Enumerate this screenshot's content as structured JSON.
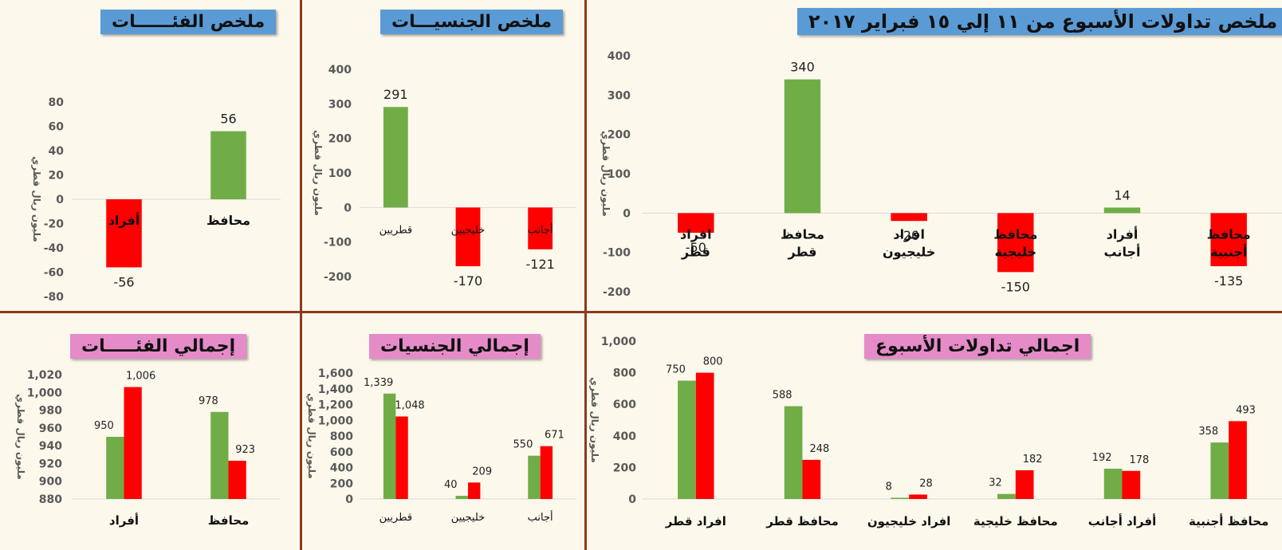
{
  "colors": {
    "green": "#70ad47",
    "red": "#ff0000",
    "blue_banner": "#5b9bd5",
    "pink_banner": "#e58bc8",
    "divider": "#8b3a1e"
  },
  "chart_data": [
    {
      "id": "weekly_net",
      "type": "bar",
      "title": "ملخص تداولات الأسبوع من ١١ إلي ١٥ فبراير ٢٠١٧",
      "ylabel": "مليون ريال قطري",
      "ylim": [
        -200,
        400
      ],
      "yticks": [
        -200,
        -100,
        0,
        100,
        200,
        300,
        400
      ],
      "categories": [
        [
          "افراد",
          "قطر"
        ],
        [
          "محافظ",
          "قطر"
        ],
        [
          "افراد",
          "خليجيون"
        ],
        [
          "محافظ",
          "خليجية"
        ],
        [
          "أفراد",
          "أجانب"
        ],
        [
          "محافظ",
          "أجنبية"
        ]
      ],
      "values": [
        -50,
        340,
        -20,
        -150,
        14,
        -135
      ],
      "labels": [
        "-50",
        "340",
        "-20",
        "-150",
        "14",
        "-135"
      ]
    },
    {
      "id": "nationality_net",
      "type": "bar",
      "title": "ملخص الجنسيـــات",
      "ylabel": "مليون ريال قطري",
      "ylim": [
        -200,
        400
      ],
      "yticks": [
        -200,
        -100,
        0,
        100,
        200,
        300,
        400
      ],
      "categories": [
        "قطريين",
        "خليجيين",
        "أجانب"
      ],
      "values": [
        291,
        -170,
        -121
      ],
      "labels": [
        "291",
        "-170",
        "-121"
      ]
    },
    {
      "id": "category_net",
      "type": "bar",
      "title": "ملخص الفئــــــات",
      "ylabel": "مليون ريال قطري",
      "ylim": [
        -80,
        80
      ],
      "yticks": [
        -80,
        -60,
        -40,
        -20,
        0,
        20,
        40,
        60,
        80
      ],
      "categories": [
        "أفراد",
        "محافظ"
      ],
      "values": [
        -56,
        56
      ],
      "labels": [
        "-56",
        "56"
      ]
    },
    {
      "id": "weekly_total",
      "type": "bar",
      "title": "اجمالي تداولات الأسبوع",
      "ylabel": "مليون ريال قطري",
      "ylim": [
        0,
        1000
      ],
      "yticks": [
        0,
        200,
        400,
        600,
        800,
        1000
      ],
      "ytick_labels": [
        "0",
        "200",
        "400",
        "600",
        "800",
        "1,000"
      ],
      "categories": [
        "افراد قطر",
        "محافظ قطر",
        "افراد خليجيون",
        "محافظ خليجية",
        "أفراد أجانب",
        "محافظ أجنبية"
      ],
      "series": [
        {
          "values": [
            750,
            588,
            8,
            32,
            192,
            358
          ],
          "labels": [
            "750",
            "588",
            "8",
            "32",
            "192",
            "358"
          ]
        },
        {
          "values": [
            800,
            248,
            28,
            182,
            178,
            493
          ],
          "labels": [
            "800",
            "248",
            "28",
            "182",
            "178",
            "493"
          ]
        }
      ]
    },
    {
      "id": "nationality_total",
      "type": "bar",
      "title": "إجمالي الجنسيات",
      "ylabel": "مليون ريال قطري",
      "ylim": [
        0,
        1600
      ],
      "yticks": [
        0,
        200,
        400,
        600,
        800,
        1000,
        1200,
        1400,
        1600
      ],
      "ytick_labels": [
        "0",
        "200",
        "400",
        "600",
        "800",
        "1,000",
        "1,200",
        "1,400",
        "1,600"
      ],
      "categories": [
        "قطريين",
        "خليجيين",
        "أجانب"
      ],
      "series": [
        {
          "values": [
            1339,
            40,
            550
          ],
          "labels": [
            "1,339",
            "40",
            "550"
          ]
        },
        {
          "values": [
            1048,
            209,
            671
          ],
          "labels": [
            "1,048",
            "209",
            "671"
          ]
        }
      ]
    },
    {
      "id": "category_total",
      "type": "bar",
      "title": "إجمالي الفئـــــات",
      "ylabel": "مليون ريال قطري",
      "ylim": [
        880,
        1020
      ],
      "yticks": [
        880,
        900,
        920,
        940,
        960,
        980,
        1000,
        1020
      ],
      "ytick_labels": [
        "880",
        "900",
        "920",
        "940",
        "960",
        "980",
        "1,000",
        "1,020"
      ],
      "categories": [
        "أفراد",
        "محافظ"
      ],
      "series": [
        {
          "values": [
            950,
            978
          ],
          "labels": [
            "950",
            "978"
          ]
        },
        {
          "values": [
            1006,
            923
          ],
          "labels": [
            "1,006",
            "923"
          ]
        }
      ]
    }
  ]
}
